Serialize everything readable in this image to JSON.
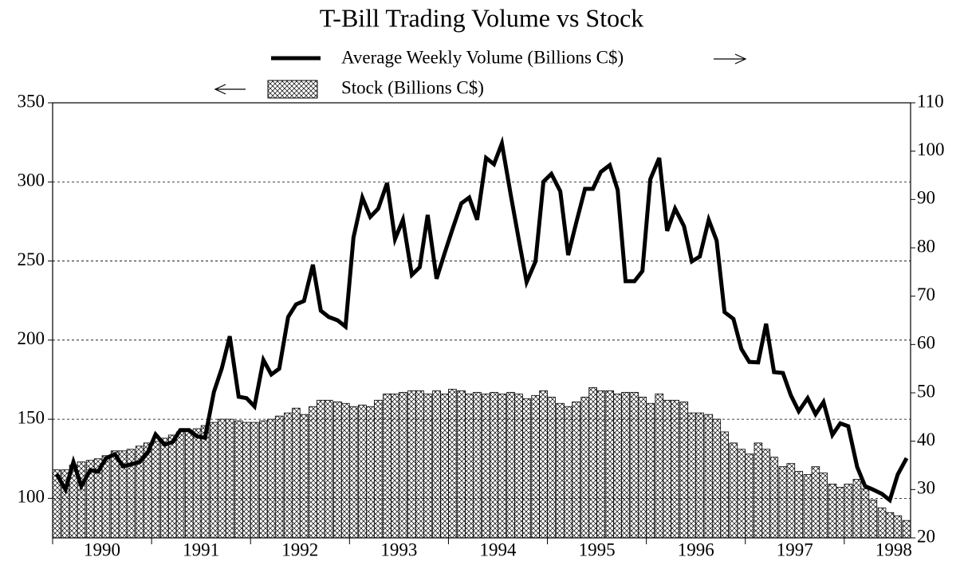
{
  "chart_data": {
    "type": "bar",
    "title": "T-Bill Trading Volume vs Stock",
    "x": [
      1990.04,
      1990.13,
      1990.21,
      1990.29,
      1990.38,
      1990.46,
      1990.54,
      1990.63,
      1990.71,
      1990.79,
      1990.88,
      1990.96,
      1991.04,
      1991.13,
      1991.21,
      1991.29,
      1991.38,
      1991.46,
      1991.54,
      1991.63,
      1991.71,
      1991.79,
      1991.88,
      1991.96,
      1992.04,
      1992.13,
      1992.21,
      1992.29,
      1992.38,
      1992.46,
      1992.54,
      1992.63,
      1992.71,
      1992.79,
      1992.88,
      1992.96,
      1993.04,
      1993.13,
      1993.21,
      1993.29,
      1993.38,
      1993.46,
      1993.54,
      1993.63,
      1993.71,
      1993.79,
      1993.88,
      1993.96,
      1994.04,
      1994.13,
      1994.21,
      1994.29,
      1994.38,
      1994.46,
      1994.54,
      1994.63,
      1994.71,
      1994.79,
      1994.88,
      1994.96,
      1995.04,
      1995.13,
      1995.21,
      1995.29,
      1995.38,
      1995.46,
      1995.54,
      1995.63,
      1995.71,
      1995.79,
      1995.88,
      1995.96,
      1996.04,
      1996.13,
      1996.21,
      1996.29,
      1996.38,
      1996.46,
      1996.54,
      1996.63,
      1996.71,
      1996.79,
      1996.88,
      1996.96,
      1997.04,
      1997.13,
      1997.21,
      1997.29,
      1997.38,
      1997.46,
      1997.54,
      1997.63,
      1997.71,
      1997.79,
      1997.88,
      1997.96,
      1998.04,
      1998.13,
      1998.21,
      1998.29,
      1998.38,
      1998.46,
      1998.54,
      1998.63
    ],
    "series": [
      {
        "name": "Average Weekly Volume (Billions C$)",
        "type": "line",
        "axis": "y2",
        "color": "#000000",
        "values": [
          33.2,
          30,
          35.7,
          30.7,
          34,
          33.7,
          36.5,
          37.3,
          34.8,
          35.2,
          35.7,
          37.6,
          41.4,
          39.3,
          39.8,
          42.3,
          42.3,
          41,
          40.7,
          50.2,
          55.1,
          61.7,
          49.2,
          48.9,
          47.2,
          56.8,
          53.8,
          55,
          65.7,
          68.3,
          69,
          76.5,
          67,
          65.7,
          65,
          63.7,
          82.1,
          90.4,
          86.4,
          88.1,
          93.4,
          81.8,
          85.8,
          74.4,
          76,
          86.8,
          73.6,
          78.8,
          83.8,
          89.2,
          90.4,
          85.8,
          98.6,
          97.3,
          101.6,
          90.9,
          81.8,
          72.9,
          77.2,
          93.7,
          95.3,
          91.7,
          78.5,
          85.1,
          92.2,
          92.2,
          95.7,
          97.1,
          92,
          73.1,
          73.1,
          75.2,
          94.2,
          98.6,
          83.5,
          88.1,
          84.5,
          77.2,
          78.2,
          85.8,
          81.5,
          66.7,
          65.3,
          59.1,
          56.4,
          56.3,
          64.3,
          54.3,
          54.1,
          49.5,
          46.2,
          48.9,
          45.6,
          48.1,
          41.3,
          43.7,
          43.1,
          34.7,
          30.7,
          30,
          29.1,
          27.8,
          33.1,
          36.5
        ]
      },
      {
        "name": "Stock (Billions C$)",
        "type": "bar",
        "color": "#000000",
        "values": [
          118,
          118,
          121,
          123,
          124,
          125,
          127,
          130,
          130,
          131,
          133,
          135,
          136,
          138,
          140,
          142,
          143,
          144,
          146,
          148,
          150,
          150,
          149,
          148,
          148,
          149,
          150,
          152,
          154,
          157,
          153,
          158,
          162,
          162,
          161,
          160,
          158,
          159,
          158,
          162,
          166,
          166,
          167,
          168,
          168,
          166,
          168,
          166,
          169,
          168,
          166,
          167,
          166,
          167,
          166,
          167,
          166,
          163,
          165,
          168,
          164,
          160,
          158,
          161,
          164,
          170,
          168,
          168,
          166,
          167,
          167,
          164,
          160,
          166,
          162,
          162,
          161,
          154,
          154,
          153,
          150,
          142,
          135,
          131,
          128,
          135,
          131,
          126,
          120,
          122,
          117,
          115,
          120,
          116,
          109,
          107,
          109,
          112,
          106,
          99,
          94,
          91,
          89,
          86
        ]
      }
    ],
    "xlim": [
      1990,
      1998.67
    ],
    "xticks": [
      {
        "value": 1990.5,
        "label": "1990"
      },
      {
        "value": 1991.5,
        "label": "1991"
      },
      {
        "value": 1992.5,
        "label": "1992"
      },
      {
        "value": 1993.5,
        "label": "1993"
      },
      {
        "value": 1994.5,
        "label": "1994"
      },
      {
        "value": 1995.5,
        "label": "1995"
      },
      {
        "value": 1996.5,
        "label": "1996"
      },
      {
        "value": 1997.5,
        "label": "1997"
      },
      {
        "value": 1998.5,
        "label": "1998"
      }
    ],
    "ylim": [
      75,
      350
    ],
    "yticks": [
      100,
      150,
      200,
      250,
      300,
      350
    ],
    "y2lim": [
      20,
      110
    ],
    "y2ticks": [
      20,
      30,
      40,
      50,
      60,
      70,
      80,
      90,
      100,
      110
    ],
    "grid": true
  }
}
